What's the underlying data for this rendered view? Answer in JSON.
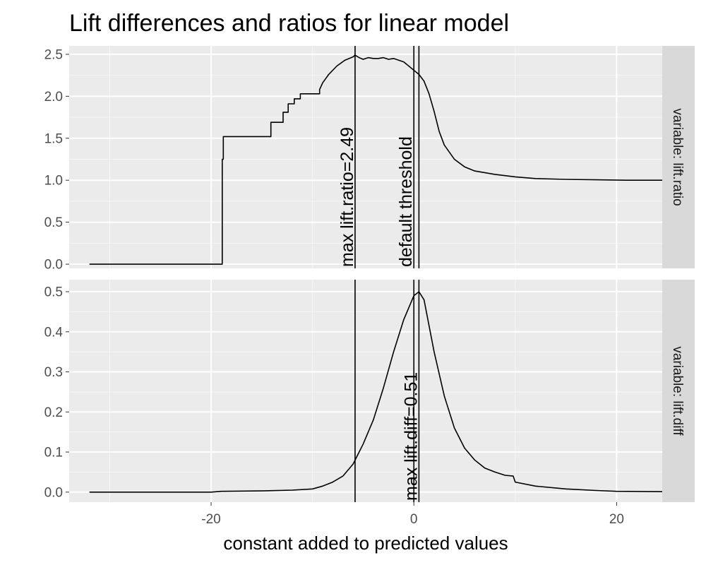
{
  "chart_data": {
    "type": "line",
    "title": "Lift differences and ratios for linear model",
    "xlabel": "constant added to predicted values",
    "ylabel": "",
    "xlim": [
      -34,
      24.5
    ],
    "x_ticks": [
      -20,
      0,
      20
    ],
    "x_tick_labels": [
      "-20",
      "0",
      "20"
    ],
    "grid": true,
    "background": "#ebebeb",
    "strip_color": "#d9d9d9",
    "line_color": "#000000",
    "default_threshold_x": 0,
    "panels": [
      {
        "strip_label": "variable: lift.ratio",
        "ylim": [
          -0.05,
          2.6
        ],
        "y_ticks": [
          0.0,
          0.5,
          1.0,
          1.5,
          2.0,
          2.5
        ],
        "y_tick_labels": [
          "0.0",
          "0.5",
          "1.0",
          "1.5",
          "2.0",
          "2.5"
        ],
        "series": [
          {
            "x": [
              -32,
              -18.9,
              -18.9,
              -18.8,
              -18.8,
              -14.1,
              -14.1,
              -12.9,
              -12.9,
              -12.4,
              -12.4,
              -11.8,
              -11.8,
              -11.2,
              -11.2,
              -9.3,
              -9.3,
              -9.0,
              -8.4,
              -7.6,
              -6.8,
              -6.0,
              -5.8,
              -5.4,
              -5.0,
              -4.5,
              -4.0,
              -3.5,
              -3.0,
              -2.5,
              -2.0,
              -1.5,
              -1.0,
              -0.5,
              0.0,
              0.5,
              1.0,
              1.5,
              2.0,
              2.5,
              3.0,
              4.0,
              5.0,
              6.0,
              8.0,
              10.0,
              12.0,
              15.0,
              18.0,
              21.0,
              24.5
            ],
            "y": [
              0.0,
              0.0,
              1.25,
              1.25,
              1.52,
              1.52,
              1.69,
              1.69,
              1.81,
              1.81,
              1.91,
              1.91,
              1.97,
              1.97,
              2.03,
              2.03,
              2.08,
              2.16,
              2.26,
              2.36,
              2.43,
              2.47,
              2.49,
              2.46,
              2.44,
              2.46,
              2.45,
              2.45,
              2.46,
              2.44,
              2.45,
              2.43,
              2.41,
              2.36,
              2.31,
              2.26,
              2.18,
              2.03,
              1.82,
              1.58,
              1.42,
              1.25,
              1.16,
              1.11,
              1.07,
              1.04,
              1.02,
              1.01,
              1.005,
              1.0,
              1.0
            ]
          }
        ],
        "vlines": [
          {
            "x": -5.8,
            "label": "max lift.ratio=2.49"
          },
          {
            "x": 0.0,
            "label": "default threshold"
          },
          {
            "x": 0.5,
            "label": ""
          }
        ]
      },
      {
        "strip_label": "variable: lift.diff",
        "ylim": [
          -0.025,
          0.53
        ],
        "y_ticks": [
          0.0,
          0.1,
          0.2,
          0.3,
          0.4,
          0.5
        ],
        "y_tick_labels": [
          "0.0",
          "0.1",
          "0.2",
          "0.3",
          "0.4",
          "0.5"
        ],
        "series": [
          {
            "x": [
              -32,
              -20,
              -19,
              -15,
              -12,
              -10,
              -9,
              -8,
              -7,
              -6,
              -5,
              -4,
              -3,
              -2,
              -1,
              0,
              0.5,
              1.0,
              2.0,
              3.0,
              4.0,
              5.0,
              6.0,
              7.0,
              8.0,
              9.0,
              9.8,
              10.0,
              12.0,
              15.0,
              18.0,
              20.0,
              24.5
            ],
            "y": [
              0.0,
              0.0,
              0.002,
              0.003,
              0.005,
              0.008,
              0.015,
              0.025,
              0.04,
              0.07,
              0.12,
              0.18,
              0.26,
              0.35,
              0.43,
              0.49,
              0.5,
              0.48,
              0.35,
              0.24,
              0.16,
              0.11,
              0.08,
              0.06,
              0.05,
              0.042,
              0.04,
              0.025,
              0.015,
              0.008,
              0.004,
              0.002,
              0.001
            ]
          }
        ],
        "vlines": [
          {
            "x": -5.8,
            "label": ""
          },
          {
            "x": 0.0,
            "label": ""
          },
          {
            "x": 0.5,
            "label": "max lift.diff=0.51"
          }
        ]
      }
    ]
  }
}
